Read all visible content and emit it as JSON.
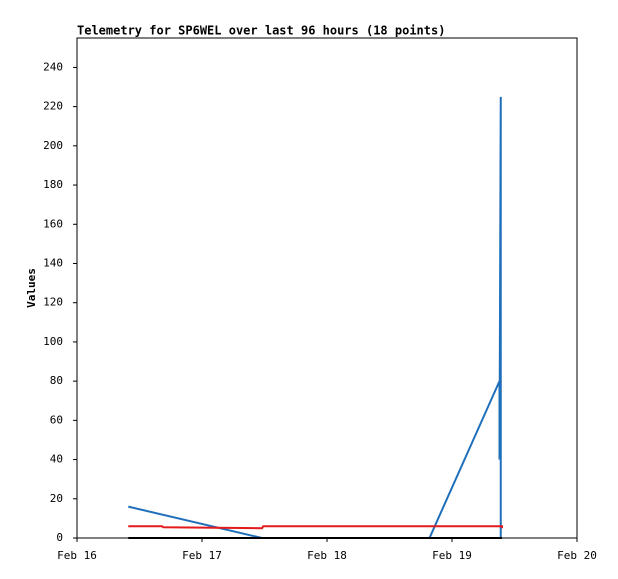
{
  "chart_data": {
    "type": "line",
    "title": "Telemetry for SP6WEL over last 96 hours (18 points)",
    "y_label": "Values",
    "xlim": [
      0,
      4
    ],
    "xticks": [
      {
        "value": 0,
        "label": "Feb 16"
      },
      {
        "value": 1,
        "label": "Feb 17"
      },
      {
        "value": 2,
        "label": "Feb 18"
      },
      {
        "value": 3,
        "label": "Feb 19"
      },
      {
        "value": 4,
        "label": "Feb 20"
      }
    ],
    "ylim": [
      0,
      255
    ],
    "yticks": [
      0,
      20,
      40,
      60,
      80,
      100,
      120,
      140,
      160,
      180,
      200,
      220,
      240
    ],
    "series": [
      {
        "color": "#1f6fba",
        "x": [
          0.41,
          1.48,
          2.82,
          3.38,
          3.38,
          3.39,
          3.39
        ],
        "values": [
          16,
          0,
          0,
          80,
          40,
          225,
          0
        ]
      },
      {
        "color": "#e31a1c",
        "x": [
          0.41,
          0.68,
          0.69,
          1.48,
          1.49,
          3.4,
          3.4
        ],
        "values": [
          6,
          6,
          5.5,
          5,
          6,
          6,
          5
        ]
      },
      {
        "color": "#000000",
        "x": [
          0.41,
          3.4
        ],
        "values": [
          0,
          0
        ]
      }
    ]
  }
}
